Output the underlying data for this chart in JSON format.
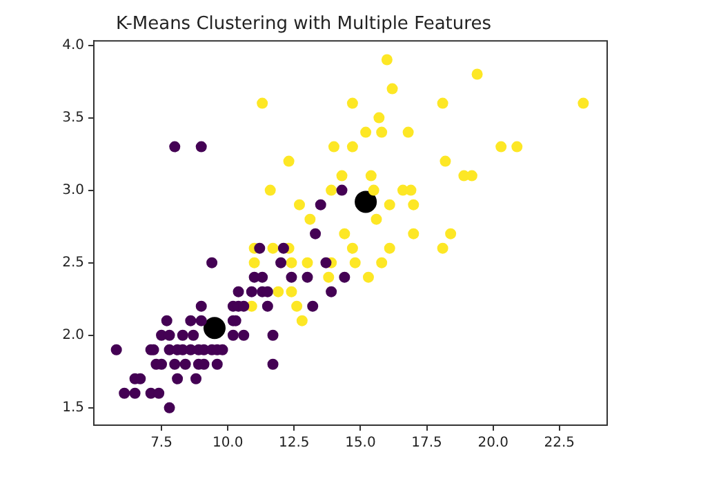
{
  "chart_data": {
    "type": "scatter",
    "title": "K-Means Clustering with Multiple Features",
    "marker": "circle",
    "grid": false,
    "legend": false,
    "xlim": [
      4.95,
      24.3
    ],
    "ylim": [
      1.38,
      4.03
    ],
    "xticks": [
      {
        "value": 7.5,
        "label": "7.5"
      },
      {
        "value": 10,
        "label": "10.0"
      },
      {
        "value": 12.5,
        "label": "12.5"
      },
      {
        "value": 15,
        "label": "15.0"
      },
      {
        "value": 17.5,
        "label": "17.5"
      },
      {
        "value": 20,
        "label": "20.0"
      },
      {
        "value": 22.5,
        "label": "22.5"
      }
    ],
    "yticks": [
      {
        "value": 1.5,
        "label": "1.5"
      },
      {
        "value": 2,
        "label": "2.0"
      },
      {
        "value": 2.5,
        "label": "2.5"
      },
      {
        "value": 3,
        "label": "3.0"
      },
      {
        "value": 3.5,
        "label": "3.5"
      },
      {
        "value": 4,
        "label": "4.0"
      }
    ],
    "series": [
      {
        "type": "scatter",
        "color": "#440154",
        "x": [
          8.0,
          9.0,
          14.3,
          13.5,
          13.3,
          14.4,
          11.2,
          12.1,
          9.4,
          12.0,
          13.7,
          11.0,
          11.3,
          12.4,
          13.0,
          10.4,
          10.9,
          11.3,
          11.5,
          13.9,
          10.2,
          10.4,
          10.6,
          11.5,
          13.2,
          9.0,
          7.7,
          8.6,
          9.0,
          10.2,
          10.3,
          7.5,
          7.8,
          8.3,
          8.7,
          10.2,
          10.6,
          11.7,
          5.8,
          7.1,
          7.2,
          7.8,
          8.1,
          8.3,
          8.6,
          8.9,
          9.1,
          9.4,
          9.6,
          9.8,
          7.3,
          7.5,
          8.0,
          8.4,
          8.9,
          9.1,
          9.6,
          11.7,
          6.5,
          6.7,
          8.1,
          8.8,
          6.1,
          6.5,
          7.1,
          7.4,
          7.8
        ],
        "values": [
          3.3,
          3.3,
          3.0,
          2.9,
          2.7,
          2.4,
          2.6,
          2.6,
          2.5,
          2.5,
          2.5,
          2.4,
          2.4,
          2.4,
          2.4,
          2.3,
          2.3,
          2.3,
          2.3,
          2.3,
          2.2,
          2.2,
          2.2,
          2.2,
          2.2,
          2.2,
          2.1,
          2.1,
          2.1,
          2.1,
          2.1,
          2.0,
          2.0,
          2.0,
          2.0,
          2.0,
          2.0,
          2.0,
          1.9,
          1.9,
          1.9,
          1.9,
          1.9,
          1.9,
          1.9,
          1.9,
          1.9,
          1.9,
          1.9,
          1.9,
          1.8,
          1.8,
          1.8,
          1.8,
          1.8,
          1.8,
          1.8,
          1.8,
          1.7,
          1.7,
          1.7,
          1.7,
          1.6,
          1.6,
          1.6,
          1.6,
          1.5
        ]
      },
      {
        "type": "scatter",
        "color": "#fde725",
        "x": [
          11.3,
          14.7,
          14.0,
          14.7,
          12.3,
          14.3,
          11.6,
          13.9,
          12.7,
          13.1,
          14.4,
          16.0,
          19.4,
          16.2,
          18.1,
          23.4,
          15.7,
          15.2,
          15.8,
          16.8,
          20.3,
          20.9,
          18.2,
          15.4,
          18.9,
          19.2,
          15.5,
          16.6,
          16.9,
          16.1,
          17.0,
          15.6,
          17.0,
          18.4,
          14.7,
          16.1,
          18.1,
          14.8,
          15.8,
          15.3,
          11.0,
          11.7,
          12.3,
          11.0,
          12.4,
          13.0,
          13.9,
          13.8,
          11.9,
          12.4,
          10.9,
          12.6,
          12.8
        ],
        "values": [
          3.6,
          3.6,
          3.3,
          3.3,
          3.2,
          3.1,
          3.0,
          3.0,
          2.9,
          2.8,
          2.7,
          3.9,
          3.8,
          3.7,
          3.6,
          3.6,
          3.5,
          3.4,
          3.4,
          3.4,
          3.3,
          3.3,
          3.2,
          3.1,
          3.1,
          3.1,
          3.0,
          3.0,
          3.0,
          2.9,
          2.9,
          2.8,
          2.7,
          2.7,
          2.6,
          2.6,
          2.6,
          2.5,
          2.5,
          2.4,
          2.6,
          2.6,
          2.6,
          2.5,
          2.5,
          2.5,
          2.5,
          2.4,
          2.3,
          2.3,
          2.2,
          2.2,
          2.1
        ]
      },
      {
        "type": "bubble",
        "color": "#000000",
        "x": [
          9.5,
          15.2
        ],
        "values": [
          2.05,
          2.92
        ],
        "sizes": [
          1,
          1
        ]
      }
    ]
  }
}
